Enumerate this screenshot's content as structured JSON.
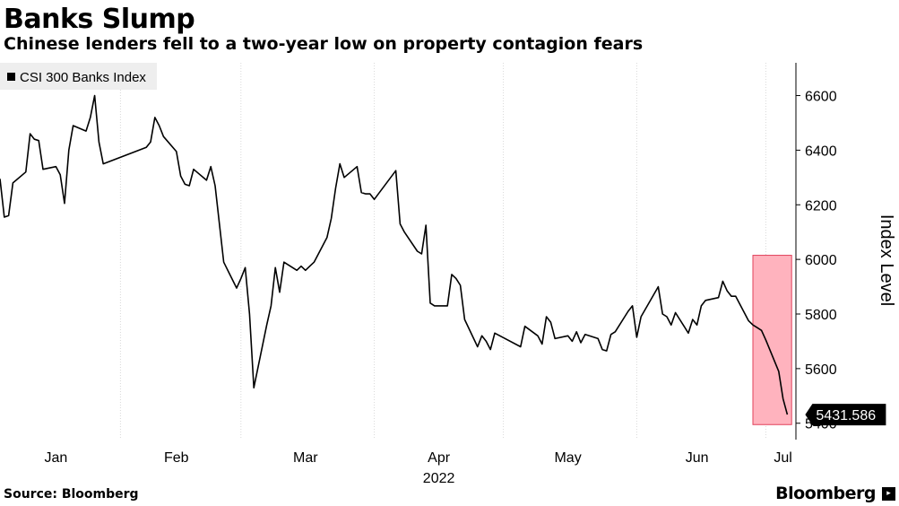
{
  "header": {
    "title": "Banks Slump",
    "subtitle": "Chinese lenders fell to a two-year low on property contagion fears"
  },
  "footer": {
    "source": "Source: Bloomberg",
    "brand": "Bloomberg",
    "brand_badge": "▸"
  },
  "colors": {
    "line": "#000000",
    "highlight_fill": "#ffb3be",
    "highlight_stroke": "#e0405a",
    "grid": "#d9d9d9",
    "label_bg": "#000000"
  },
  "chart_data": {
    "type": "line",
    "title": "Banks Slump",
    "subtitle": "Chinese lenders fell to a two-year low on property contagion fears",
    "ylabel": "Index Level",
    "xlabel": "",
    "year_label": "2022",
    "ylim": [
      5340,
      6720
    ],
    "yticks": [
      5400,
      5600,
      5800,
      6000,
      6200,
      6400,
      6600
    ],
    "xlim": [
      "2022-01-04",
      "2022-07-08"
    ],
    "month_ticks": [
      {
        "label": "Jan",
        "date": "2022-01-17"
      },
      {
        "label": "Feb",
        "date": "2022-02-14"
      },
      {
        "label": "Mar",
        "date": "2022-03-16"
      },
      {
        "label": "Apr",
        "date": "2022-04-16"
      },
      {
        "label": "May",
        "date": "2022-05-16"
      },
      {
        "label": "Jun",
        "date": "2022-06-15"
      },
      {
        "label": "Jul",
        "date": "2022-07-05"
      }
    ],
    "gridlines_x": true,
    "gridlines_y": false,
    "legend": {
      "position": "top-left",
      "entries": [
        "CSI 300 Banks Index"
      ]
    },
    "series": [
      {
        "name": "CSI 300 Banks Index",
        "points": [
          [
            "2022-01-04",
            6295
          ],
          [
            "2022-01-05",
            6155
          ],
          [
            "2022-01-06",
            6160
          ],
          [
            "2022-01-07",
            6280
          ],
          [
            "2022-01-10",
            6320
          ],
          [
            "2022-01-11",
            6460
          ],
          [
            "2022-01-12",
            6440
          ],
          [
            "2022-01-13",
            6435
          ],
          [
            "2022-01-14",
            6330
          ],
          [
            "2022-01-17",
            6340
          ],
          [
            "2022-01-18",
            6310
          ],
          [
            "2022-01-19",
            6205
          ],
          [
            "2022-01-20",
            6400
          ],
          [
            "2022-01-21",
            6490
          ],
          [
            "2022-01-24",
            6470
          ],
          [
            "2022-01-25",
            6520
          ],
          [
            "2022-01-26",
            6600
          ],
          [
            "2022-01-27",
            6430
          ],
          [
            "2022-01-28",
            6350
          ],
          [
            "2022-02-07",
            6410
          ],
          [
            "2022-02-08",
            6430
          ],
          [
            "2022-02-09",
            6520
          ],
          [
            "2022-02-10",
            6490
          ],
          [
            "2022-02-11",
            6450
          ],
          [
            "2022-02-14",
            6395
          ],
          [
            "2022-02-15",
            6305
          ],
          [
            "2022-02-16",
            6275
          ],
          [
            "2022-02-17",
            6270
          ],
          [
            "2022-02-18",
            6330
          ],
          [
            "2022-02-21",
            6290
          ],
          [
            "2022-02-22",
            6340
          ],
          [
            "2022-02-23",
            6270
          ],
          [
            "2022-02-24",
            6130
          ],
          [
            "2022-02-25",
            5990
          ],
          [
            "2022-02-28",
            5895
          ],
          [
            "2022-03-01",
            5930
          ],
          [
            "2022-03-02",
            5970
          ],
          [
            "2022-03-03",
            5800
          ],
          [
            "2022-03-04",
            5530
          ],
          [
            "2022-03-07",
            5760
          ],
          [
            "2022-03-08",
            5830
          ],
          [
            "2022-03-09",
            5970
          ],
          [
            "2022-03-10",
            5880
          ],
          [
            "2022-03-11",
            5990
          ],
          [
            "2022-03-14",
            5960
          ],
          [
            "2022-03-15",
            5975
          ],
          [
            "2022-03-16",
            5960
          ],
          [
            "2022-03-17",
            5975
          ],
          [
            "2022-03-18",
            5990
          ],
          [
            "2022-03-21",
            6080
          ],
          [
            "2022-03-22",
            6150
          ],
          [
            "2022-03-23",
            6260
          ],
          [
            "2022-03-24",
            6350
          ],
          [
            "2022-03-25",
            6300
          ],
          [
            "2022-03-28",
            6340
          ],
          [
            "2022-03-29",
            6245
          ],
          [
            "2022-03-30",
            6240
          ],
          [
            "2022-03-31",
            6240
          ],
          [
            "2022-04-01",
            6220
          ],
          [
            "2022-04-06",
            6325
          ],
          [
            "2022-04-07",
            6130
          ],
          [
            "2022-04-08",
            6100
          ],
          [
            "2022-04-11",
            6030
          ],
          [
            "2022-04-12",
            6020
          ],
          [
            "2022-04-13",
            6125
          ],
          [
            "2022-04-14",
            5840
          ],
          [
            "2022-04-15",
            5830
          ],
          [
            "2022-04-18",
            5830
          ],
          [
            "2022-04-19",
            5945
          ],
          [
            "2022-04-20",
            5930
          ],
          [
            "2022-04-21",
            5905
          ],
          [
            "2022-04-22",
            5780
          ],
          [
            "2022-04-25",
            5680
          ],
          [
            "2022-04-26",
            5720
          ],
          [
            "2022-04-27",
            5700
          ],
          [
            "2022-04-28",
            5670
          ],
          [
            "2022-04-29",
            5730
          ],
          [
            "2022-05-05",
            5680
          ],
          [
            "2022-05-06",
            5755
          ],
          [
            "2022-05-09",
            5720
          ],
          [
            "2022-05-10",
            5690
          ],
          [
            "2022-05-11",
            5790
          ],
          [
            "2022-05-12",
            5770
          ],
          [
            "2022-05-13",
            5710
          ],
          [
            "2022-05-16",
            5720
          ],
          [
            "2022-05-17",
            5700
          ],
          [
            "2022-05-18",
            5735
          ],
          [
            "2022-05-19",
            5695
          ],
          [
            "2022-05-20",
            5725
          ],
          [
            "2022-05-23",
            5710
          ],
          [
            "2022-05-24",
            5670
          ],
          [
            "2022-05-25",
            5665
          ],
          [
            "2022-05-26",
            5725
          ],
          [
            "2022-05-27",
            5735
          ],
          [
            "2022-05-30",
            5810
          ],
          [
            "2022-05-31",
            5830
          ],
          [
            "2022-06-01",
            5715
          ],
          [
            "2022-06-02",
            5790
          ],
          [
            "2022-06-06",
            5900
          ],
          [
            "2022-06-07",
            5800
          ],
          [
            "2022-06-08",
            5790
          ],
          [
            "2022-06-09",
            5760
          ],
          [
            "2022-06-10",
            5805
          ],
          [
            "2022-06-13",
            5730
          ],
          [
            "2022-06-14",
            5780
          ],
          [
            "2022-06-15",
            5760
          ],
          [
            "2022-06-16",
            5830
          ],
          [
            "2022-06-17",
            5850
          ],
          [
            "2022-06-20",
            5860
          ],
          [
            "2022-06-21",
            5920
          ],
          [
            "2022-06-22",
            5885
          ],
          [
            "2022-06-23",
            5865
          ],
          [
            "2022-06-24",
            5865
          ],
          [
            "2022-06-27",
            5775
          ],
          [
            "2022-06-28",
            5760
          ],
          [
            "2022-06-29",
            5750
          ],
          [
            "2022-06-30",
            5740
          ],
          [
            "2022-07-01",
            5705
          ],
          [
            "2022-07-04",
            5590
          ],
          [
            "2022-07-05",
            5490
          ],
          [
            "2022-07-06",
            5431.586
          ]
        ]
      }
    ],
    "last_value_label": "5431.586",
    "highlight": {
      "x_start": "2022-06-28",
      "x_end": "2022-07-07",
      "y_start": 5395,
      "y_end": 6015
    }
  }
}
